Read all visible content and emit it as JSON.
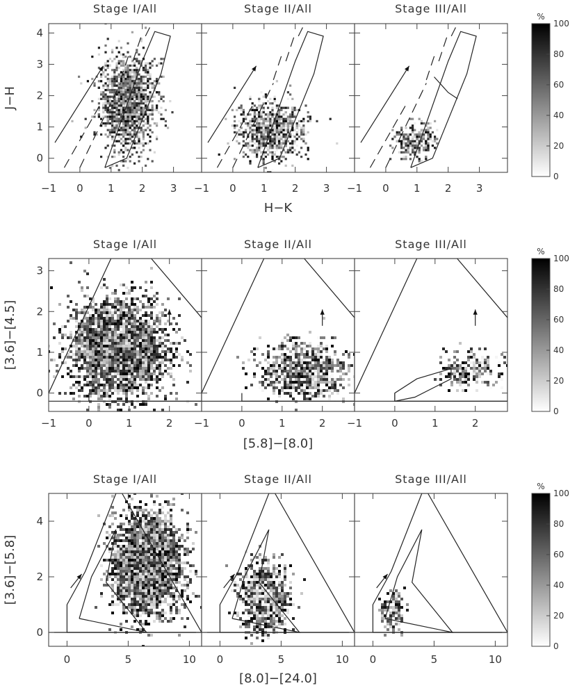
{
  "colorbar": {
    "label": "%",
    "ticks": [
      0,
      20,
      40,
      60,
      80,
      100
    ]
  },
  "chart_data": [
    {
      "type": "heatmap",
      "row": 1,
      "panel_titles": [
        "Stage I/All",
        "Stage II/All",
        "Stage III/All"
      ],
      "xlabel": "H−K",
      "ylabel": "J−H",
      "xlim": [
        -1,
        3.9
      ],
      "ylim": [
        -0.45,
        4.3
      ],
      "xticks": [
        -1,
        0,
        1,
        2,
        3
      ],
      "yticks": [
        0,
        1,
        2,
        3,
        4
      ],
      "xticks_per_panel": [
        [
          "−1",
          "0",
          "1",
          "2",
          "3"
        ],
        [
          "−1",
          "0",
          "1",
          "2",
          "3"
        ],
        [
          "−1",
          "0",
          "1",
          "2",
          "3"
        ]
      ],
      "yticks_labels": [
        "0",
        "1",
        "2",
        "3",
        "4"
      ],
      "colorbar_range": [
        0,
        100
      ],
      "reddening_vector": {
        "from": [
          -0.8,
          0.5
        ],
        "to": [
          0.75,
          2.95
        ]
      },
      "dashed_lines": [
        [
          [
            -0.5,
            -0.3
          ],
          [
            0.7,
            1.8
          ]
        ],
        [
          [
            0.0,
            -0.3
          ],
          [
            1.3,
            2.4
          ]
        ],
        [
          [
            1.3,
            2.5
          ],
          [
            1.6,
            3.4
          ]
        ],
        [
          [
            1.7,
            3.1
          ],
          [
            2.0,
            4.0
          ]
        ],
        [
          [
            2.1,
            3.9
          ],
          [
            2.3,
            4.3
          ]
        ]
      ],
      "regions": {
        "panel3_inner": [
          [
            1.55,
            2.6
          ],
          [
            2.0,
            2.1
          ],
          [
            2.3,
            1.9
          ]
        ]
      },
      "outline": [
        [
          0.8,
          -0.3
        ],
        [
          1.5,
          0.0
        ],
        [
          2.6,
          2.7
        ],
        [
          2.9,
          3.9
        ],
        [
          2.4,
          4.05
        ],
        [
          2.0,
          3.1
        ],
        [
          0.8,
          -0.3
        ]
      ],
      "density": {
        "panel1": {
          "center": [
            1.5,
            1.8
          ],
          "spread": [
            0.8,
            1.3
          ],
          "max_pct": 100
        },
        "panel2": {
          "center": [
            1.2,
            0.9
          ],
          "spread": [
            0.9,
            0.8
          ],
          "max_pct": 100
        },
        "panel3": {
          "center": [
            0.9,
            0.6
          ],
          "spread": [
            0.6,
            0.5
          ],
          "max_pct": 100
        }
      }
    },
    {
      "type": "heatmap",
      "row": 2,
      "panel_titles": [
        "Stage I/All",
        "Stage II/All",
        "Stage III/All"
      ],
      "xlabel": "[5.8]−[8.0]",
      "ylabel": "[3.6]−[4.5]",
      "xlim": [
        -1,
        2.8
      ],
      "ylim": [
        -0.45,
        3.3
      ],
      "xticks": [
        -1,
        0,
        1,
        2
      ],
      "yticks": [
        0,
        1,
        2,
        3
      ],
      "xticks_per_panel": [
        [
          "−1",
          "0",
          "1",
          "2"
        ],
        [
          "−1",
          "0",
          "1",
          "2"
        ],
        [
          "−1",
          "0",
          "1",
          "2"
        ]
      ],
      "yticks_labels": [
        "0",
        "1",
        "2",
        "3"
      ],
      "colorbar_range": [
        0,
        100
      ],
      "reddening_vector": {
        "from": [
          2.0,
          1.65
        ],
        "to": [
          2.0,
          2.05
        ]
      },
      "baseline_y": -0.2,
      "outline": [
        [
          -1,
          0.0
        ],
        [
          0.55,
          3.3
        ],
        [
          1.55,
          3.3
        ],
        [
          2.8,
          1.85
        ],
        [
          2.8,
          -0.2
        ],
        [
          0.0,
          -0.2
        ],
        [
          0.0,
          0.0
        ]
      ],
      "outline_panel3_inner": [
        [
          0.0,
          -0.2
        ],
        [
          0.0,
          0.0
        ],
        [
          0.55,
          0.35
        ],
        [
          1.4,
          0.6
        ],
        [
          1.4,
          0.35
        ],
        [
          0.5,
          -0.1
        ],
        [
          0.0,
          -0.2
        ]
      ],
      "density": {
        "panel1": {
          "center": [
            0.7,
            1.1
          ],
          "spread": [
            1.1,
            1.1
          ],
          "max_pct": 100
        },
        "panel2": {
          "center": [
            1.5,
            0.6
          ],
          "spread": [
            1.0,
            0.6
          ],
          "max_pct": 100
        },
        "panel3": {
          "center": [
            1.9,
            0.6
          ],
          "spread": [
            0.7,
            0.4
          ],
          "max_pct": 100
        }
      }
    },
    {
      "type": "heatmap",
      "row": 3,
      "panel_titles": [
        "Stage I/All",
        "Stage II/All",
        "Stage III/All"
      ],
      "xlabel": "[8.0]−[24.0]",
      "ylabel": "[3.6]−[5.8]",
      "xlim": [
        -1.5,
        11
      ],
      "ylim": [
        -0.5,
        5
      ],
      "xticks": [
        0,
        5,
        10
      ],
      "yticks": [
        0,
        2,
        4
      ],
      "xticks_per_panel": [
        [
          "0",
          "5",
          "10"
        ],
        [
          "0",
          "5",
          "10"
        ],
        [
          "0",
          "5",
          "10"
        ]
      ],
      "yticks_labels": [
        "0",
        "2",
        "4"
      ],
      "colorbar_range": [
        0,
        100
      ],
      "reddening_vector": {
        "from": [
          0.3,
          1.6
        ],
        "to": [
          1.2,
          2.1
        ]
      },
      "baseline_y": 0.0,
      "outline": [
        [
          0.0,
          0.0
        ],
        [
          0.0,
          1.0
        ],
        [
          1.5,
          2.2
        ],
        [
          4.0,
          5.0
        ],
        [
          4.5,
          5.0
        ],
        [
          11,
          0.0
        ],
        [
          0.0,
          0.0
        ]
      ],
      "outline_inner": [
        [
          1.0,
          0.5
        ],
        [
          2.0,
          2.0
        ],
        [
          4.0,
          3.7
        ],
        [
          3.2,
          1.8
        ],
        [
          6.5,
          0.0
        ],
        [
          1.0,
          0.5
        ]
      ],
      "density": {
        "panel1": {
          "center": [
            6.5,
            2.5
          ],
          "spread": [
            2.5,
            1.6
          ],
          "max_pct": 100
        },
        "panel2": {
          "center": [
            3.5,
            1.3
          ],
          "spread": [
            1.6,
            1.0
          ],
          "max_pct": 100
        },
        "panel3": {
          "center": [
            1.5,
            0.8
          ],
          "spread": [
            0.9,
            0.6
          ],
          "max_pct": 100
        }
      }
    }
  ]
}
